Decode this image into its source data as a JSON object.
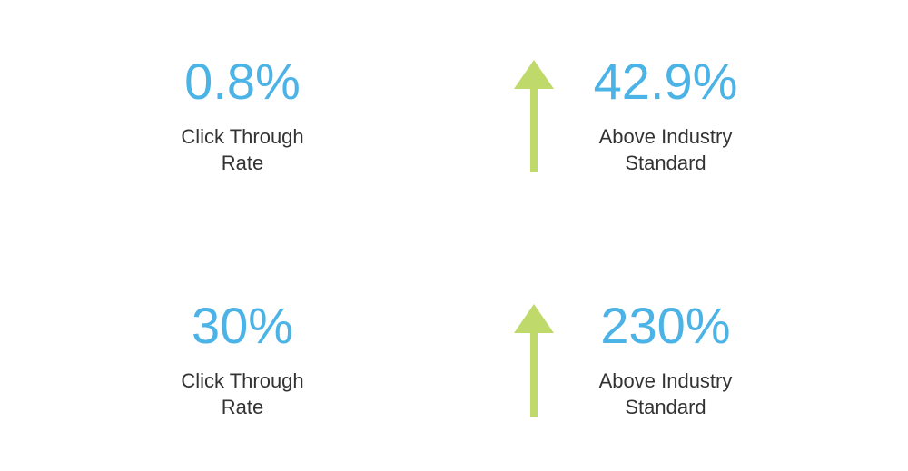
{
  "colors": {
    "value": "#4bb3e6",
    "label": "#333333",
    "arrow": "#bfda6b",
    "background": "#ffffff"
  },
  "stats": [
    {
      "value": "0.8%",
      "label_line1": "Click Through",
      "label_line2": "Rate"
    },
    {
      "value": "42.9%",
      "label_line1": "Above Industry",
      "label_line2": "Standard",
      "icon": "arrow-up-icon"
    },
    {
      "value": "30%",
      "label_line1": "Click Through",
      "label_line2": "Rate"
    },
    {
      "value": "230%",
      "label_line1": "Above Industry",
      "label_line2": "Standard",
      "icon": "arrow-up-icon"
    }
  ]
}
